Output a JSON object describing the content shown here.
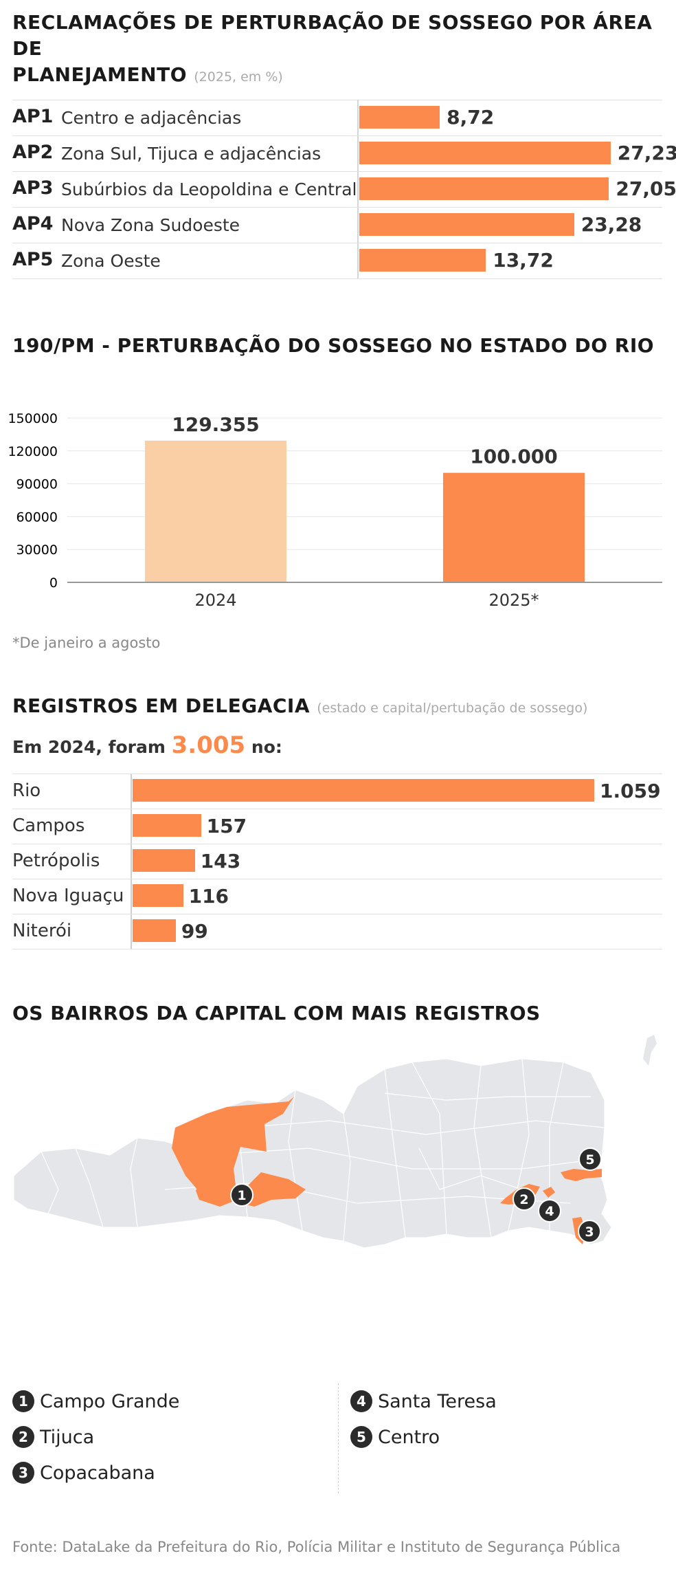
{
  "section1": {
    "title_line1": "RECLAMAÇÕES DE PERTURBAÇÃO DE SOSSEGO POR ÁREA DE",
    "title_line2": "PLANEJAMENTO",
    "note": "(2025, em %)"
  },
  "section2": {
    "title": "190/PM - PERTURBAÇÃO DO SOSSEGO NO ESTADO DO RIO",
    "footnote": "*De janeiro a agosto"
  },
  "section3": {
    "title": "REGISTROS EM DELEGACIA",
    "note": "(estado e capital/pertubação de sossego)",
    "intro_prefix": "Em 2024, foram",
    "intro_value": "3.005",
    "intro_suffix": "no:"
  },
  "section4": {
    "title": "OS BAIRROS DA CAPITAL COM MAIS REGISTROS",
    "legend": [
      {
        "num": "1",
        "name": "Campo Grande"
      },
      {
        "num": "2",
        "name": "Tijuca"
      },
      {
        "num": "3",
        "name": "Copacabana"
      },
      {
        "num": "4",
        "name": "Santa Teresa"
      },
      {
        "num": "5",
        "name": "Centro"
      }
    ]
  },
  "footer": "Fonte: DataLake da Prefeitura do Rio, Polícia Militar e Instituto de Segurança Pública",
  "colors": {
    "accent": "#fc8a4c",
    "accent_light": "#fbcfa6",
    "map_base": "#e4e6ea",
    "badge": "#2b2b2b"
  },
  "chart_data": [
    {
      "type": "bar",
      "orientation": "horizontal",
      "categories": [
        "AP1",
        "AP2",
        "AP3",
        "AP4",
        "AP5"
      ],
      "category_labels": [
        "Centro e adjacências",
        "Zona Sul, Tijuca e adjacências",
        "Subúrbios da Leopoldina e Central",
        "Nova Zona Sudoeste",
        "Zona Oeste"
      ],
      "values": [
        8.72,
        27.23,
        27.05,
        23.28,
        13.72
      ],
      "value_labels": [
        "8,72",
        "27,23",
        "27,05",
        "23,28",
        "13,72"
      ],
      "xlim": [
        0,
        30
      ]
    },
    {
      "type": "bar",
      "categories": [
        "2024",
        "2025*"
      ],
      "values": [
        129355,
        100000
      ],
      "value_labels": [
        "129.355",
        "100.000"
      ],
      "bar_colors": [
        "#fbcfa6",
        "#fc8a4c"
      ],
      "ylim": [
        0,
        150000
      ],
      "yticks": [
        0,
        30000,
        60000,
        90000,
        120000,
        150000
      ],
      "grid": true
    },
    {
      "type": "bar",
      "orientation": "horizontal",
      "categories": [
        "Rio",
        "Campos",
        "Petrópolis",
        "Nova Iguaçu",
        "Niterói"
      ],
      "values": [
        1059,
        157,
        143,
        116,
        99
      ],
      "value_labels": [
        "1.059",
        "157",
        "143",
        "116",
        "99"
      ],
      "xlim": [
        0,
        1059
      ]
    }
  ]
}
